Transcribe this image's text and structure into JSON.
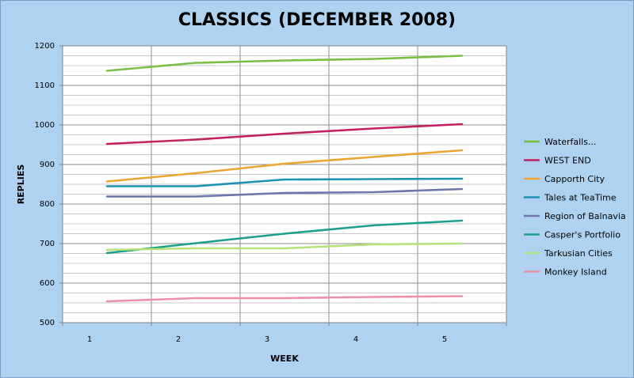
{
  "chart_data": {
    "type": "line",
    "title": "CLASSICS (DECEMBER 2008)",
    "xlabel": "WEEK",
    "ylabel": "REPLIES",
    "x": [
      1,
      2,
      3,
      4,
      5
    ],
    "x_tick_labels": [
      "1",
      "2",
      "3",
      "4",
      "5"
    ],
    "ylim": [
      500,
      1200
    ],
    "y_ticks": [
      500,
      600,
      700,
      800,
      900,
      1000,
      1100,
      1200
    ],
    "grid": true,
    "legend_position": "right",
    "series": [
      {
        "name": "Waterfalls...",
        "color": "#77c043",
        "values": [
          1137,
          1157,
          1163,
          1167,
          1175
        ]
      },
      {
        "name": "WEST END",
        "color": "#c3205f",
        "values": [
          952,
          963,
          978,
          991,
          1002
        ]
      },
      {
        "name": "Capporth City",
        "color": "#eaa532",
        "values": [
          857,
          878,
          902,
          919,
          936
        ]
      },
      {
        "name": "Tales at TeaTime",
        "color": "#1a93b4",
        "values": [
          845,
          845,
          862,
          863,
          864
        ]
      },
      {
        "name": "Region of Balnavia",
        "color": "#6d76ab",
        "values": [
          819,
          819,
          828,
          830,
          838
        ]
      },
      {
        "name": "Casper's Portfolio",
        "color": "#1aa08d",
        "values": [
          676,
          701,
          725,
          746,
          758
        ]
      },
      {
        "name": "Tarkusian Cities",
        "color": "#b7e27a",
        "values": [
          684,
          688,
          688,
          698,
          700
        ]
      },
      {
        "name": "Monkey Island",
        "color": "#ee8fa8",
        "values": [
          554,
          562,
          562,
          565,
          567
        ]
      }
    ]
  }
}
